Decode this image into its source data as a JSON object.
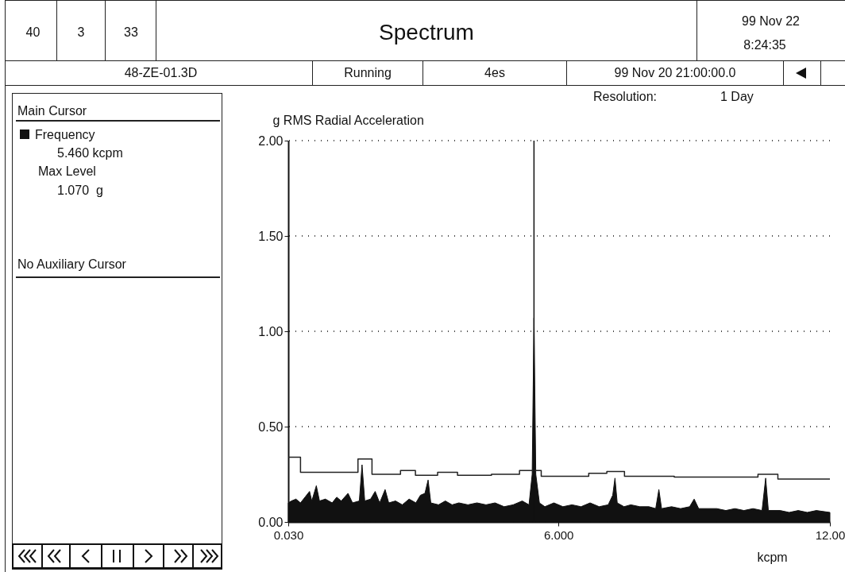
{
  "chart_data": {
    "type": "area",
    "title": "Spectrum",
    "xlabel": "kcpm",
    "ylabel": "g RMS Radial Acceleration",
    "annotations": [
      "40",
      "3",
      "33",
      "99 Nov 22",
      "8:24:35",
      "48-ZE-01.3D",
      "Running",
      "4es",
      "99 Nov 20 21:00:00.0",
      "Resolution:",
      "1 Day",
      "Main Cursor",
      "Frequency",
      "5.460 kcpm",
      "Max Level",
      "1.070  g",
      "No Auxiliary Cursor"
    ],
    "series": [
      {
        "color": "#111111",
        "x": [
          0.03,
          0.1,
          0.2,
          0.3,
          0.4,
          0.5,
          0.55,
          0.65,
          0.72,
          0.85,
          1.0,
          1.1,
          1.2,
          1.35,
          1.45,
          1.6,
          1.66,
          1.72,
          1.85,
          1.95,
          2.05,
          2.17,
          2.25,
          2.4,
          2.55,
          2.7,
          2.85,
          2.95,
          3.05,
          3.12,
          3.18,
          3.35,
          3.5,
          3.65,
          3.8,
          4.0,
          4.2,
          4.4,
          4.6,
          4.8,
          5.0,
          5.2,
          5.35,
          5.42,
          5.46,
          5.5,
          5.58,
          5.7,
          5.9,
          6.1,
          6.3,
          6.5,
          6.7,
          6.9,
          7.1,
          7.2,
          7.25,
          7.3,
          7.45,
          7.6,
          7.8,
          8.0,
          8.15,
          8.22,
          8.28,
          8.5,
          8.7,
          8.9,
          9.0,
          9.1,
          9.3,
          9.5,
          9.7,
          9.9,
          10.1,
          10.3,
          10.5,
          10.58,
          10.64,
          10.9,
          11.1,
          11.3,
          11.5,
          11.7,
          12.0
        ],
        "values": [
          0.1,
          0.11,
          0.12,
          0.1,
          0.13,
          0.16,
          0.11,
          0.19,
          0.11,
          0.12,
          0.1,
          0.13,
          0.11,
          0.15,
          0.1,
          0.11,
          0.3,
          0.11,
          0.12,
          0.16,
          0.1,
          0.17,
          0.1,
          0.11,
          0.09,
          0.12,
          0.1,
          0.14,
          0.15,
          0.22,
          0.1,
          0.09,
          0.11,
          0.09,
          0.1,
          0.09,
          0.1,
          0.09,
          0.1,
          0.08,
          0.09,
          0.11,
          0.09,
          0.25,
          1.07,
          0.25,
          0.1,
          0.08,
          0.1,
          0.08,
          0.09,
          0.08,
          0.1,
          0.08,
          0.09,
          0.14,
          0.23,
          0.1,
          0.08,
          0.09,
          0.08,
          0.08,
          0.07,
          0.17,
          0.07,
          0.08,
          0.07,
          0.08,
          0.12,
          0.07,
          0.07,
          0.07,
          0.06,
          0.07,
          0.06,
          0.07,
          0.06,
          0.23,
          0.06,
          0.06,
          0.05,
          0.06,
          0.05,
          0.06,
          0.05
        ]
      },
      {
        "type": "step",
        "color": "#222222",
        "x": [
          0.03,
          0.3,
          1.57,
          1.88,
          2.51,
          2.84,
          3.33,
          3.77,
          4.52,
          5.14,
          5.62,
          6.67,
          7.07,
          7.46,
          8.56,
          10.41,
          10.85,
          12.0
        ],
        "values": [
          0.34,
          0.26,
          0.33,
          0.25,
          0.27,
          0.245,
          0.26,
          0.245,
          0.25,
          0.27,
          0.24,
          0.255,
          0.265,
          0.24,
          0.235,
          0.25,
          0.225,
          0.225
        ]
      }
    ],
    "ref_lines": [
      {
        "axis": "x",
        "value": 5.46,
        "color": "#111111"
      }
    ],
    "xlim": [
      0.03,
      12.0
    ],
    "xticks": [
      {
        "value": 0.03,
        "label": "0.030"
      },
      {
        "value": 6,
        "label": "6.000"
      },
      {
        "value": 12,
        "label": "12.00"
      }
    ],
    "ylim": [
      0,
      2
    ],
    "yticks": [
      {
        "value": 0,
        "label": "0.00"
      },
      {
        "value": 0.5,
        "label": "0.50"
      },
      {
        "value": 1,
        "label": "1.00"
      },
      {
        "value": 1.5,
        "label": "1.50"
      },
      {
        "value": 2,
        "label": "2.00"
      }
    ],
    "grid": "y"
  }
}
